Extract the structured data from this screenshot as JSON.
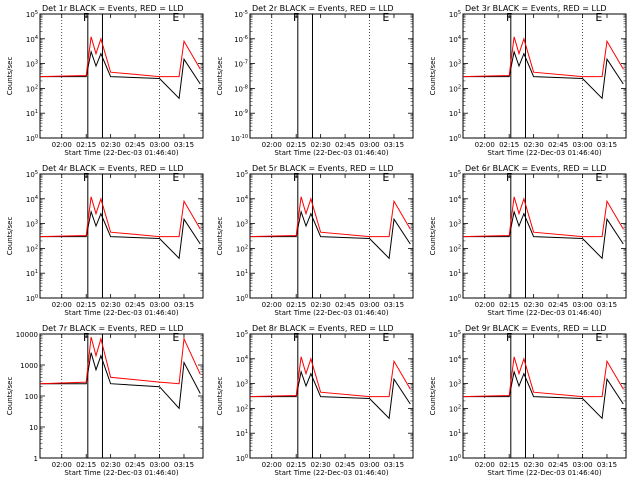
{
  "figure": {
    "xlabel": "Start Time (22-Dec-03 01:46:40)",
    "ylabel": "Counts/sec",
    "x_tick_labels": [
      "02:00",
      "02:15",
      "02:30",
      "02:45",
      "03:00",
      "03:15"
    ],
    "flag_labels": [
      "F",
      "E"
    ],
    "colors": {
      "events": "#000000",
      "lld": "#ff0000"
    }
  },
  "chart_data": [
    {
      "type": "line",
      "title": "Det 1r BLACK = Events, RED = LLD",
      "yscale": "log",
      "ylim": [
        1,
        100000
      ],
      "y_tick_labels": [
        "10^0",
        "10^1",
        "10^2",
        "10^3",
        "10^4",
        "10^5"
      ],
      "x": [
        "01:46:40",
        "02:15",
        "02:18",
        "02:21",
        "02:24",
        "02:30",
        "03:00",
        "03:12",
        "03:15",
        "03:25"
      ],
      "series": [
        {
          "name": "Events",
          "values": [
            300,
            300,
            3000,
            800,
            2500,
            300,
            250,
            40,
            1500,
            150
          ]
        },
        {
          "name": "LLD",
          "values": [
            300,
            330,
            12000,
            2500,
            10000,
            450,
            300,
            300,
            8000,
            600
          ]
        }
      ]
    },
    {
      "type": "line",
      "title": "Det 2r BLACK = Events, RED = LLD",
      "yscale": "log",
      "ylim": [
        1e-10,
        1e-05
      ],
      "y_tick_labels": [
        "10^-10",
        "10^-9",
        "10^-8",
        "10^-7",
        "10^-6",
        "10^-5"
      ],
      "x": [],
      "series": []
    },
    {
      "type": "line",
      "title": "Det 3r BLACK = Events, RED = LLD",
      "yscale": "log",
      "ylim": [
        1,
        100000
      ],
      "y_tick_labels": [
        "10^0",
        "10^1",
        "10^2",
        "10^3",
        "10^4",
        "10^5"
      ],
      "x": [
        "01:46:40",
        "02:15",
        "02:18",
        "02:21",
        "02:24",
        "02:30",
        "03:00",
        "03:12",
        "03:15",
        "03:25"
      ],
      "series": [
        {
          "name": "Events",
          "values": [
            300,
            300,
            3000,
            800,
            2500,
            300,
            250,
            40,
            1500,
            150
          ]
        },
        {
          "name": "LLD",
          "values": [
            300,
            330,
            12000,
            2500,
            10000,
            450,
            300,
            300,
            8000,
            600
          ]
        }
      ]
    },
    {
      "type": "line",
      "title": "Det 4r BLACK = Events, RED = LLD",
      "yscale": "log",
      "ylim": [
        1,
        100000
      ],
      "y_tick_labels": [
        "10^0",
        "10^1",
        "10^2",
        "10^3",
        "10^4",
        "10^5"
      ],
      "x": [
        "01:46:40",
        "02:15",
        "02:18",
        "02:21",
        "02:24",
        "02:30",
        "03:00",
        "03:12",
        "03:15",
        "03:25"
      ],
      "series": [
        {
          "name": "Events",
          "values": [
            300,
            300,
            3000,
            800,
            2500,
            300,
            250,
            40,
            1500,
            150
          ]
        },
        {
          "name": "LLD",
          "values": [
            300,
            330,
            12000,
            2500,
            10000,
            450,
            300,
            300,
            8000,
            600
          ]
        }
      ]
    },
    {
      "type": "line",
      "title": "Det 5r BLACK = Events, RED = LLD",
      "yscale": "log",
      "ylim": [
        1,
        100000
      ],
      "y_tick_labels": [
        "10^0",
        "10^1",
        "10^2",
        "10^3",
        "10^4",
        "10^5"
      ],
      "x": [
        "01:46:40",
        "02:15",
        "02:18",
        "02:21",
        "02:24",
        "02:30",
        "03:00",
        "03:12",
        "03:15",
        "03:25"
      ],
      "series": [
        {
          "name": "Events",
          "values": [
            300,
            300,
            3000,
            800,
            2500,
            300,
            250,
            40,
            1500,
            150
          ]
        },
        {
          "name": "LLD",
          "values": [
            300,
            330,
            12000,
            2500,
            10000,
            450,
            300,
            300,
            8000,
            600
          ]
        }
      ]
    },
    {
      "type": "line",
      "title": "Det 6r BLACK = Events, RED = LLD",
      "yscale": "log",
      "ylim": [
        1,
        100000
      ],
      "y_tick_labels": [
        "10^0",
        "10^1",
        "10^2",
        "10^3",
        "10^4",
        "10^5"
      ],
      "x": [
        "01:46:40",
        "02:15",
        "02:18",
        "02:21",
        "02:24",
        "02:30",
        "03:00",
        "03:12",
        "03:15",
        "03:25"
      ],
      "series": [
        {
          "name": "Events",
          "values": [
            300,
            300,
            3000,
            800,
            2500,
            300,
            250,
            40,
            1500,
            150
          ]
        },
        {
          "name": "LLD",
          "values": [
            300,
            330,
            12000,
            2500,
            10000,
            450,
            300,
            300,
            8000,
            600
          ]
        }
      ]
    },
    {
      "type": "line",
      "title": "Det 7r BLACK = Events, RED = LLD",
      "yscale": "log",
      "ylim": [
        1,
        10000
      ],
      "y_tick_labels": [
        "1",
        "10",
        "100",
        "1000",
        "10000"
      ],
      "x": [
        "01:46:40",
        "02:15",
        "02:18",
        "02:21",
        "02:24",
        "02:30",
        "03:00",
        "03:12",
        "03:15",
        "03:25"
      ],
      "series": [
        {
          "name": "Events",
          "values": [
            250,
            250,
            2500,
            700,
            2000,
            250,
            200,
            40,
            1200,
            120
          ]
        },
        {
          "name": "LLD",
          "values": [
            250,
            280,
            8000,
            2000,
            7000,
            400,
            280,
            250,
            7000,
            500
          ]
        }
      ]
    },
    {
      "type": "line",
      "title": "Det 8r BLACK = Events, RED = LLD",
      "yscale": "log",
      "ylim": [
        1,
        100000
      ],
      "y_tick_labels": [
        "10^0",
        "10^1",
        "10^2",
        "10^3",
        "10^4",
        "10^5"
      ],
      "x": [
        "01:46:40",
        "02:15",
        "02:18",
        "02:21",
        "02:24",
        "02:30",
        "03:00",
        "03:12",
        "03:15",
        "03:25"
      ],
      "series": [
        {
          "name": "Events",
          "values": [
            300,
            300,
            3000,
            800,
            2500,
            300,
            250,
            40,
            1500,
            150
          ]
        },
        {
          "name": "LLD",
          "values": [
            300,
            330,
            12000,
            2500,
            10000,
            450,
            300,
            300,
            8000,
            600
          ]
        }
      ]
    },
    {
      "type": "line",
      "title": "Det 9r BLACK = Events, RED = LLD",
      "yscale": "log",
      "ylim": [
        1,
        100000
      ],
      "y_tick_labels": [
        "10^0",
        "10^1",
        "10^2",
        "10^3",
        "10^4",
        "10^5"
      ],
      "x": [
        "01:46:40",
        "02:15",
        "02:18",
        "02:21",
        "02:24",
        "02:30",
        "03:00",
        "03:12",
        "03:15",
        "03:25"
      ],
      "series": [
        {
          "name": "Events",
          "values": [
            300,
            300,
            3000,
            800,
            2500,
            300,
            250,
            40,
            1500,
            150
          ]
        },
        {
          "name": "LLD",
          "values": [
            300,
            330,
            12000,
            2500,
            10000,
            450,
            300,
            300,
            8000,
            600
          ]
        }
      ]
    }
  ]
}
